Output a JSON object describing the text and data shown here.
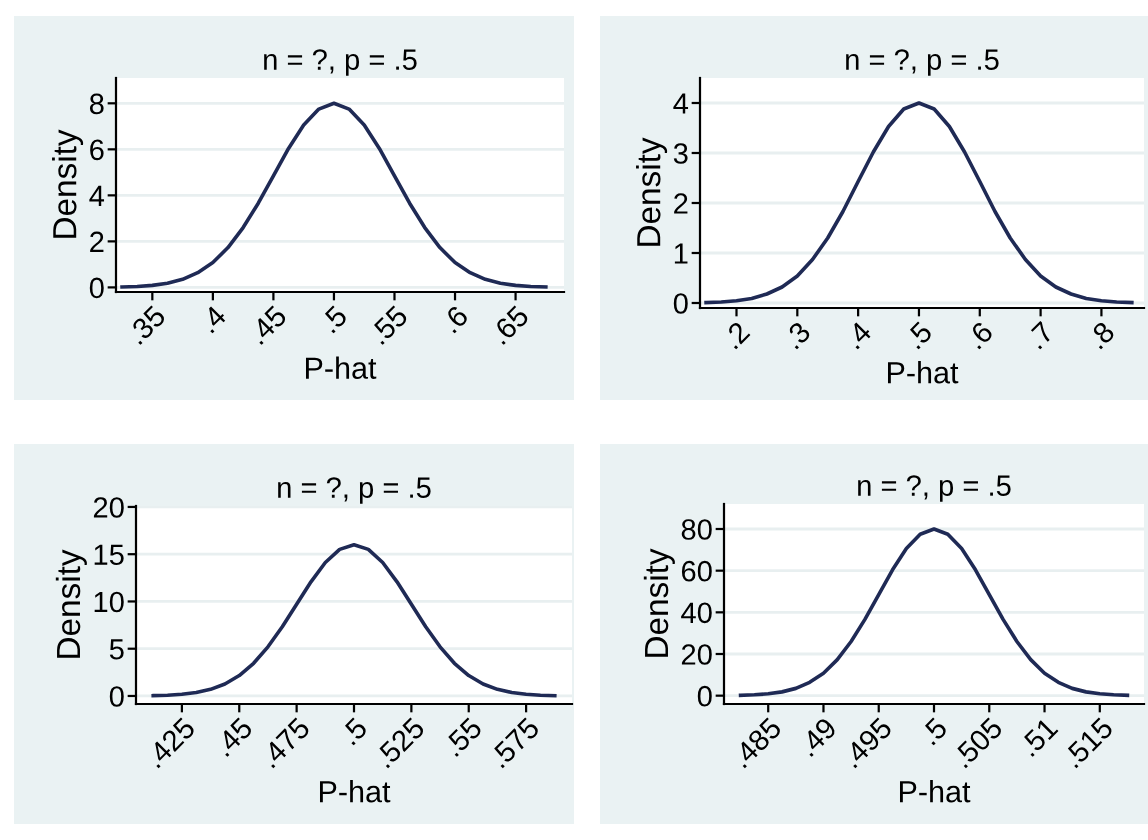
{
  "chart_data": [
    {
      "type": "line",
      "title": "n = ?, p = .5",
      "xlabel": "P-hat",
      "ylabel": "Density",
      "grid": "y",
      "xlim": [
        0.32,
        0.69
      ],
      "ylim": [
        -0.2,
        9.1
      ],
      "yticks": [
        0,
        2,
        4,
        6,
        8
      ],
      "xticks": [
        {
          "value": 0.35,
          "label": ".35"
        },
        {
          "value": 0.4,
          "label": ".4"
        },
        {
          "value": 0.45,
          "label": ".45"
        },
        {
          "value": 0.5,
          "label": ".5"
        },
        {
          "value": 0.55,
          "label": ".55"
        },
        {
          "value": 0.6,
          "label": ".6"
        },
        {
          "value": 0.65,
          "label": ".65"
        }
      ],
      "series": [
        {
          "color": "#1f2a55",
          "x": [
            0.325,
            0.3375,
            0.35,
            0.3625,
            0.375,
            0.3875,
            0.4,
            0.4125,
            0.425,
            0.4375,
            0.45,
            0.4625,
            0.475,
            0.4875,
            0.5,
            0.5125,
            0.525,
            0.5375,
            0.55,
            0.5625,
            0.575,
            0.5875,
            0.6,
            0.6125,
            0.625,
            0.6375,
            0.65,
            0.6625,
            0.675
          ],
          "values": [
            0.018,
            0.041,
            0.089,
            0.18,
            0.35,
            0.64,
            1.08,
            1.73,
            2.6,
            3.66,
            4.85,
            6.04,
            7.06,
            7.75,
            8,
            7.75,
            7.06,
            6.04,
            4.85,
            3.66,
            2.6,
            1.73,
            1.08,
            0.64,
            0.35,
            0.18,
            0.089,
            0.041,
            0.018
          ]
        }
      ]
    },
    {
      "type": "line",
      "title": "n = ?, p = .5",
      "xlabel": "P-hat",
      "ylabel": "Density",
      "grid": "y",
      "xlim": [
        0.14,
        0.87
      ],
      "ylim": [
        -0.1,
        4.5
      ],
      "yticks": [
        0,
        1,
        2,
        3,
        4
      ],
      "xticks": [
        {
          "value": 0.2,
          "label": ".2"
        },
        {
          "value": 0.3,
          "label": ".3"
        },
        {
          "value": 0.4,
          "label": ".4"
        },
        {
          "value": 0.5,
          "label": ".5"
        },
        {
          "value": 0.6,
          "label": ".6"
        },
        {
          "value": 0.7,
          "label": ".7"
        },
        {
          "value": 0.8,
          "label": ".8"
        }
      ],
      "series": [
        {
          "color": "#1f2a55",
          "x": [
            0.15,
            0.175,
            0.2,
            0.225,
            0.25,
            0.275,
            0.3,
            0.325,
            0.35,
            0.375,
            0.4,
            0.425,
            0.45,
            0.475,
            0.5,
            0.525,
            0.55,
            0.575,
            0.6,
            0.625,
            0.65,
            0.675,
            0.7,
            0.725,
            0.75,
            0.775,
            0.8,
            0.825,
            0.85
          ],
          "values": [
            0.009,
            0.02,
            0.044,
            0.091,
            0.18,
            0.32,
            0.54,
            0.87,
            1.3,
            1.83,
            2.43,
            3.02,
            3.53,
            3.88,
            4,
            3.88,
            3.53,
            3.02,
            2.43,
            1.83,
            1.3,
            0.87,
            0.54,
            0.32,
            0.18,
            0.091,
            0.044,
            0.02,
            0.009
          ]
        }
      ]
    },
    {
      "type": "line",
      "title": "n = ?, p = .5",
      "xlabel": "P-hat",
      "ylabel": "Density",
      "grid": "y",
      "xlim": [
        0.405,
        0.595
      ],
      "ylim": [
        -0.85,
        20.1
      ],
      "yticks": [
        0,
        5,
        10,
        15,
        20
      ],
      "xticks": [
        {
          "value": 0.425,
          "label": ".425"
        },
        {
          "value": 0.45,
          "label": ".45"
        },
        {
          "value": 0.475,
          "label": ".475"
        },
        {
          "value": 0.5,
          "label": ".5"
        },
        {
          "value": 0.525,
          "label": ".525"
        },
        {
          "value": 0.55,
          "label": ".55"
        },
        {
          "value": 0.575,
          "label": ".575"
        }
      ],
      "series": [
        {
          "color": "#1f2a55",
          "x": [
            0.4125,
            0.41875,
            0.425,
            0.43125,
            0.4375,
            0.44375,
            0.45,
            0.45625,
            0.4625,
            0.46875,
            0.475,
            0.48125,
            0.4875,
            0.49375,
            0.5,
            0.50625,
            0.5125,
            0.51875,
            0.525,
            0.53125,
            0.5375,
            0.54375,
            0.55,
            0.55625,
            0.5625,
            0.56875,
            0.575,
            0.58125,
            0.5875
          ],
          "values": [
            0.035,
            0.082,
            0.18,
            0.36,
            0.7,
            1.27,
            2.16,
            3.46,
            5.2,
            7.32,
            9.7,
            12.08,
            14.12,
            15.51,
            16,
            15.51,
            14.12,
            12.08,
            9.7,
            7.32,
            5.2,
            3.46,
            2.16,
            1.27,
            0.7,
            0.36,
            0.18,
            0.082,
            0.035
          ]
        }
      ]
    },
    {
      "type": "line",
      "title": "n = ?, p = .5",
      "xlabel": "P-hat",
      "ylabel": "Density",
      "grid": "y",
      "xlim": [
        0.481,
        0.519
      ],
      "ylim": [
        -4,
        92
      ],
      "yticks": [
        0,
        20,
        40,
        60,
        80
      ],
      "xticks": [
        {
          "value": 0.485,
          "label": ".485"
        },
        {
          "value": 0.49,
          "label": ".49"
        },
        {
          "value": 0.495,
          "label": ".495"
        },
        {
          "value": 0.5,
          "label": ".5"
        },
        {
          "value": 0.505,
          "label": ".505"
        },
        {
          "value": 0.51,
          "label": ".51"
        },
        {
          "value": 0.515,
          "label": ".515"
        }
      ],
      "series": [
        {
          "color": "#1f2a55",
          "x": [
            0.4825,
            0.48375,
            0.485,
            0.48625,
            0.4875,
            0.48875,
            0.49,
            0.49125,
            0.4925,
            0.49375,
            0.495,
            0.49625,
            0.4975,
            0.49875,
            0.5,
            0.50125,
            0.5025,
            0.50375,
            0.505,
            0.50625,
            0.5075,
            0.50875,
            0.51,
            0.51125,
            0.5125,
            0.51375,
            0.515,
            0.51625,
            0.5175
          ],
          "values": [
            0.18,
            0.41,
            0.89,
            1.82,
            3.5,
            6.4,
            10.8,
            17.3,
            26,
            36.6,
            48.5,
            60.4,
            70.6,
            77.5,
            80,
            77.5,
            70.6,
            60.4,
            48.5,
            36.6,
            26,
            17.3,
            10.8,
            6.4,
            3.5,
            1.82,
            0.89,
            0.41,
            0.18
          ]
        }
      ]
    }
  ]
}
